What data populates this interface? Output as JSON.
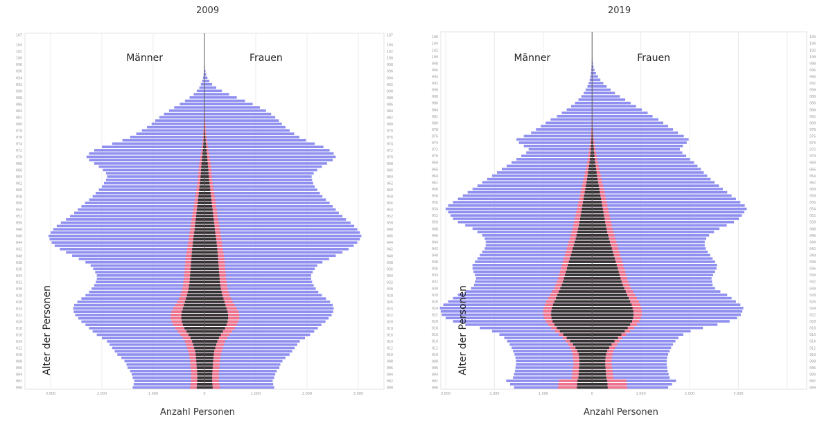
{
  "chart_data": [
    {
      "type": "population_pyramid",
      "title": "2009",
      "left_label": "Männer",
      "right_label": "Frauen",
      "ylabel": "Alter der Personen",
      "xlabel": "Anzahl Personen",
      "x_ticks": [
        "3.000",
        "2.000",
        "1.000",
        "0",
        "1.000",
        "2.000",
        "3.000"
      ],
      "xlim": [
        -3500,
        3500
      ],
      "age_ticks": [
        "000",
        "002",
        "004",
        "006",
        "008",
        "010",
        "012",
        "014",
        "016",
        "018",
        "020",
        "022",
        "024",
        "026",
        "028",
        "030",
        "032",
        "034",
        "036",
        "038",
        "040",
        "042",
        "044",
        "046",
        "048",
        "050",
        "052",
        "054",
        "056",
        "058",
        "060",
        "062",
        "064",
        "066",
        "068",
        "070",
        "072",
        "074",
        "076",
        "078",
        "080",
        "082",
        "084",
        "086",
        "088",
        "090",
        "092",
        "094",
        "096",
        "098",
        "100",
        "102",
        "104",
        "107"
      ],
      "ages": [
        0,
        107
      ],
      "series_order": [
        "total",
        "middle",
        "inner"
      ],
      "bar_colors": {
        "total": "#8f8ff0",
        "middle": "#f0728a",
        "inner": "#333333"
      },
      "male_total": [
        1400,
        1380,
        1370,
        1400,
        1420,
        1450,
        1500,
        1520,
        1560,
        1620,
        1700,
        1750,
        1800,
        1850,
        1900,
        2000,
        2100,
        2180,
        2250,
        2320,
        2400,
        2460,
        2520,
        2550,
        2560,
        2540,
        2480,
        2400,
        2320,
        2250,
        2200,
        2150,
        2120,
        2100,
        2100,
        2130,
        2170,
        2220,
        2320,
        2450,
        2580,
        2700,
        2820,
        2920,
        2980,
        3020,
        3040,
        3000,
        2950,
        2880,
        2800,
        2700,
        2620,
        2540,
        2470,
        2400,
        2330,
        2250,
        2180,
        2120,
        2060,
        2000,
        1960,
        1920,
        1900,
        1920,
        1980,
        2060,
        2150,
        2250,
        2300,
        2250,
        2150,
        2000,
        1800,
        1600,
        1450,
        1330,
        1220,
        1120,
        1030,
        960,
        880,
        790,
        690,
        590,
        480,
        380,
        290,
        210,
        150,
        100,
        70,
        45,
        28,
        18,
        11,
        7,
        4,
        3,
        2,
        2,
        1,
        1,
        1,
        1,
        0,
        0
      ],
      "female_total": [
        1360,
        1340,
        1330,
        1360,
        1380,
        1410,
        1460,
        1480,
        1520,
        1580,
        1660,
        1710,
        1760,
        1810,
        1860,
        1960,
        2060,
        2140,
        2210,
        2280,
        2360,
        2420,
        2480,
        2510,
        2520,
        2500,
        2450,
        2370,
        2290,
        2220,
        2170,
        2130,
        2100,
        2080,
        2080,
        2110,
        2150,
        2200,
        2300,
        2430,
        2560,
        2690,
        2810,
        2910,
        2980,
        3030,
        3060,
        3030,
        2980,
        2920,
        2850,
        2760,
        2690,
        2620,
        2560,
        2500,
        2440,
        2370,
        2300,
        2250,
        2200,
        2150,
        2120,
        2100,
        2090,
        2130,
        2200,
        2290,
        2390,
        2500,
        2560,
        2520,
        2440,
        2320,
        2150,
        1980,
        1850,
        1750,
        1660,
        1580,
        1510,
        1450,
        1380,
        1300,
        1200,
        1080,
        940,
        790,
        630,
        480,
        340,
        230,
        150,
        95,
        58,
        35,
        20,
        12,
        7,
        4,
        3,
        2,
        1,
        1,
        1,
        1,
        0,
        0
      ],
      "male_middle": [
        280,
        270,
        260,
        260,
        260,
        265,
        270,
        275,
        280,
        290,
        300,
        320,
        340,
        360,
        380,
        420,
        470,
        520,
        570,
        610,
        640,
        660,
        660,
        640,
        610,
        570,
        530,
        500,
        470,
        450,
        430,
        420,
        410,
        400,
        395,
        390,
        385,
        380,
        375,
        370,
        360,
        350,
        340,
        330,
        320,
        310,
        300,
        290,
        280,
        270,
        260,
        250,
        240,
        230,
        220,
        210,
        200,
        190,
        180,
        170,
        160,
        150,
        140,
        130,
        125,
        120,
        115,
        110,
        100,
        90,
        80,
        70,
        60,
        50,
        40,
        35,
        30,
        25,
        20,
        15,
        12,
        10,
        8,
        6,
        5,
        4,
        3,
        2,
        1,
        1,
        1,
        1,
        1,
        0,
        0,
        0,
        0,
        0,
        0,
        0,
        0,
        0,
        0,
        0,
        0,
        0,
        0,
        0
      ],
      "female_middle": [
        300,
        290,
        280,
        280,
        280,
        285,
        290,
        295,
        300,
        310,
        320,
        340,
        360,
        380,
        400,
        440,
        490,
        540,
        590,
        630,
        660,
        680,
        680,
        660,
        630,
        590,
        550,
        520,
        490,
        470,
        450,
        440,
        430,
        420,
        415,
        410,
        405,
        400,
        395,
        390,
        380,
        370,
        360,
        350,
        340,
        330,
        320,
        310,
        300,
        290,
        280,
        270,
        260,
        250,
        240,
        230,
        220,
        210,
        200,
        190,
        180,
        170,
        160,
        150,
        145,
        140,
        135,
        130,
        120,
        110,
        100,
        90,
        80,
        70,
        60,
        50,
        40,
        35,
        30,
        25,
        20,
        15,
        12,
        10,
        8,
        6,
        5,
        4,
        3,
        2,
        1,
        1,
        1,
        0,
        0,
        0,
        0,
        0,
        0,
        0,
        0,
        0,
        0,
        0,
        0,
        0,
        0,
        0
      ],
      "male_inner": [
        150,
        145,
        140,
        140,
        140,
        145,
        150,
        155,
        160,
        165,
        170,
        180,
        200,
        220,
        240,
        270,
        310,
        350,
        390,
        420,
        440,
        450,
        450,
        440,
        420,
        400,
        380,
        360,
        340,
        325,
        310,
        300,
        290,
        285,
        280,
        275,
        270,
        265,
        260,
        255,
        250,
        245,
        240,
        232,
        225,
        218,
        210,
        200,
        192,
        185,
        178,
        170,
        162,
        155,
        148,
        140,
        132,
        125,
        118,
        110,
        102,
        95,
        88,
        80,
        75,
        70,
        66,
        62,
        56,
        50,
        44,
        38,
        32,
        26,
        21,
        17,
        14,
        11,
        8,
        6,
        5,
        4,
        3,
        2,
        1,
        1,
        1,
        1,
        0,
        0,
        0,
        0,
        0,
        0,
        0,
        0,
        0,
        0,
        0,
        0,
        0,
        0,
        0,
        0,
        0,
        0,
        0,
        0
      ],
      "female_inner": [
        160,
        155,
        150,
        150,
        150,
        155,
        160,
        165,
        170,
        175,
        180,
        190,
        210,
        230,
        250,
        280,
        320,
        360,
        400,
        430,
        450,
        460,
        460,
        450,
        430,
        410,
        390,
        370,
        350,
        335,
        320,
        310,
        300,
        295,
        290,
        285,
        280,
        275,
        270,
        265,
        260,
        255,
        250,
        242,
        235,
        228,
        220,
        210,
        202,
        195,
        188,
        180,
        172,
        165,
        158,
        150,
        142,
        135,
        128,
        120,
        112,
        105,
        98,
        90,
        85,
        80,
        75,
        70,
        64,
        58,
        52,
        46,
        40,
        34,
        28,
        22,
        18,
        14,
        11,
        8,
        6,
        5,
        4,
        3,
        2,
        1,
        1,
        1,
        0,
        0,
        0,
        0,
        0,
        0,
        0,
        0,
        0,
        0,
        0,
        0,
        0,
        0,
        0,
        0,
        0,
        0,
        0,
        0
      ]
    },
    {
      "type": "population_pyramid",
      "title": "2019",
      "left_label": "Männer",
      "right_label": "Frauen",
      "ylabel": "Alter der Personen",
      "xlabel": "Anzahl Personen",
      "x_ticks": [
        "3.000",
        "2.000",
        "1.000",
        "0",
        "1.000",
        "2.000",
        "3.000"
      ],
      "xlim": [
        -3100,
        4400
      ],
      "age_ticks": [
        "000",
        "002",
        "004",
        "006",
        "008",
        "010",
        "012",
        "014",
        "016",
        "018",
        "020",
        "022",
        "024",
        "026",
        "028",
        "030",
        "032",
        "034",
        "036",
        "038",
        "040",
        "042",
        "044",
        "046",
        "048",
        "050",
        "052",
        "054",
        "056",
        "058",
        "060",
        "062",
        "064",
        "066",
        "068",
        "070",
        "072",
        "074",
        "076",
        "078",
        "080",
        "082",
        "084",
        "086",
        "088",
        "090",
        "092",
        "094",
        "096",
        "098",
        "100",
        "102",
        "104",
        "106"
      ],
      "ages": [
        0,
        107
      ],
      "series_order": [
        "total",
        "middle",
        "inner"
      ],
      "bar_colors": {
        "total": "#8f8ff0",
        "middle": "#f0728a",
        "inner": "#333333"
      },
      "male_total": [
        1600,
        1680,
        1760,
        1620,
        1600,
        1580,
        1570,
        1560,
        1560,
        1570,
        1590,
        1620,
        1650,
        1690,
        1740,
        1800,
        1900,
        2050,
        2300,
        2600,
        2850,
        3000,
        3080,
        3100,
        3120,
        3050,
        2950,
        2850,
        2750,
        2600,
        2480,
        2420,
        2400,
        2380,
        2400,
        2430,
        2450,
        2450,
        2400,
        2350,
        2300,
        2250,
        2200,
        2180,
        2180,
        2200,
        2250,
        2350,
        2450,
        2600,
        2750,
        2850,
        2900,
        2950,
        3000,
        2950,
        2850,
        2750,
        2650,
        2550,
        2450,
        2350,
        2250,
        2150,
        2050,
        1950,
        1850,
        1750,
        1650,
        1550,
        1450,
        1350,
        1300,
        1400,
        1500,
        1550,
        1400,
        1250,
        1150,
        1050,
        950,
        850,
        720,
        620,
        520,
        430,
        350,
        280,
        220,
        170,
        130,
        95,
        70,
        50,
        35,
        25,
        17,
        12,
        8,
        5,
        3,
        2,
        1,
        1,
        1,
        1,
        0,
        0
      ],
      "female_total": [
        1560,
        1640,
        1720,
        1590,
        1570,
        1550,
        1540,
        1530,
        1530,
        1540,
        1560,
        1590,
        1620,
        1660,
        1710,
        1770,
        1870,
        2020,
        2270,
        2570,
        2820,
        2970,
        3050,
        3080,
        3100,
        3040,
        2950,
        2860,
        2770,
        2630,
        2520,
        2470,
        2460,
        2450,
        2480,
        2520,
        2550,
        2560,
        2520,
        2470,
        2420,
        2370,
        2330,
        2310,
        2310,
        2340,
        2400,
        2500,
        2610,
        2760,
        2910,
        3010,
        3070,
        3120,
        3170,
        3130,
        3040,
        2950,
        2860,
        2770,
        2680,
        2600,
        2510,
        2430,
        2360,
        2290,
        2230,
        2160,
        2090,
        2010,
        1930,
        1850,
        1800,
        1860,
        1940,
        1980,
        1880,
        1760,
        1660,
        1560,
        1460,
        1360,
        1240,
        1140,
        1020,
        900,
        790,
        680,
        570,
        470,
        380,
        300,
        230,
        170,
        120,
        80,
        50,
        30,
        18,
        11,
        6,
        4,
        2,
        1,
        1,
        1,
        0,
        0
      ],
      "male_middle": [
        700,
        690,
        680,
        420,
        410,
        400,
        390,
        380,
        380,
        390,
        400,
        420,
        450,
        490,
        540,
        600,
        680,
        760,
        840,
        900,
        950,
        980,
        1000,
        1000,
        990,
        970,
        940,
        900,
        860,
        820,
        780,
        750,
        720,
        700,
        680,
        660,
        640,
        620,
        600,
        580,
        560,
        540,
        520,
        500,
        480,
        460,
        440,
        420,
        400,
        385,
        370,
        355,
        340,
        325,
        310,
        295,
        280,
        265,
        250,
        235,
        220,
        205,
        190,
        175,
        160,
        145,
        130,
        115,
        100,
        90,
        80,
        70,
        60,
        50,
        40,
        32,
        25,
        20,
        15,
        12,
        10,
        8,
        6,
        5,
        4,
        3,
        2,
        1,
        1,
        1,
        0,
        0,
        0,
        0,
        0,
        0,
        0,
        0,
        0,
        0,
        0,
        0,
        0,
        0,
        0,
        0,
        0,
        0
      ],
      "female_middle": [
        720,
        710,
        700,
        440,
        430,
        420,
        410,
        400,
        400,
        410,
        420,
        440,
        470,
        510,
        560,
        620,
        700,
        780,
        860,
        920,
        970,
        1000,
        1020,
        1020,
        1010,
        990,
        960,
        920,
        880,
        840,
        800,
        770,
        740,
        720,
        700,
        680,
        660,
        640,
        620,
        600,
        580,
        560,
        540,
        520,
        500,
        480,
        460,
        440,
        420,
        405,
        390,
        375,
        360,
        345,
        330,
        315,
        300,
        285,
        270,
        255,
        240,
        225,
        210,
        195,
        180,
        165,
        150,
        135,
        120,
        108,
        96,
        84,
        72,
        60,
        50,
        40,
        32,
        25,
        20,
        15,
        12,
        9,
        7,
        5,
        4,
        3,
        2,
        1,
        1,
        1,
        0,
        0,
        0,
        0,
        0,
        0,
        0,
        0,
        0,
        0,
        0,
        0,
        0,
        0,
        0,
        0,
        0,
        0,
        0
      ],
      "male_inner": [
        310,
        305,
        300,
        280,
        275,
        270,
        265,
        260,
        260,
        265,
        275,
        300,
        340,
        390,
        450,
        520,
        590,
        660,
        720,
        770,
        810,
        830,
        840,
        835,
        820,
        800,
        770,
        740,
        710,
        680,
        650,
        620,
        595,
        575,
        555,
        535,
        515,
        495,
        475,
        455,
        435,
        415,
        395,
        375,
        355,
        335,
        318,
        300,
        285,
        270,
        258,
        246,
        234,
        222,
        210,
        198,
        186,
        174,
        162,
        150,
        138,
        126,
        114,
        102,
        92,
        82,
        72,
        62,
        53,
        45,
        38,
        32,
        27,
        22,
        18,
        14,
        11,
        8,
        6,
        5,
        4,
        3,
        2,
        1,
        1,
        1,
        0,
        0,
        0,
        0,
        0,
        0,
        0,
        0,
        0,
        0,
        0,
        0,
        0,
        0,
        0,
        0,
        0,
        0,
        0,
        0,
        0,
        0
      ],
      "female_inner": [
        320,
        315,
        310,
        290,
        285,
        280,
        275,
        270,
        270,
        275,
        285,
        310,
        350,
        400,
        460,
        530,
        600,
        670,
        730,
        780,
        820,
        840,
        850,
        845,
        830,
        810,
        780,
        750,
        720,
        690,
        660,
        630,
        605,
        585,
        565,
        545,
        525,
        505,
        485,
        465,
        445,
        425,
        405,
        385,
        365,
        345,
        328,
        310,
        295,
        280,
        268,
        256,
        244,
        232,
        220,
        208,
        196,
        184,
        172,
        160,
        148,
        136,
        124,
        112,
        102,
        92,
        82,
        72,
        63,
        55,
        48,
        42,
        36,
        30,
        25,
        20,
        16,
        12,
        9,
        7,
        5,
        4,
        3,
        2,
        1,
        1,
        1,
        0,
        0,
        0,
        0,
        0,
        0,
        0,
        0,
        0,
        0,
        0,
        0,
        0,
        0,
        0,
        0,
        0,
        0,
        0,
        0,
        0
      ]
    }
  ]
}
